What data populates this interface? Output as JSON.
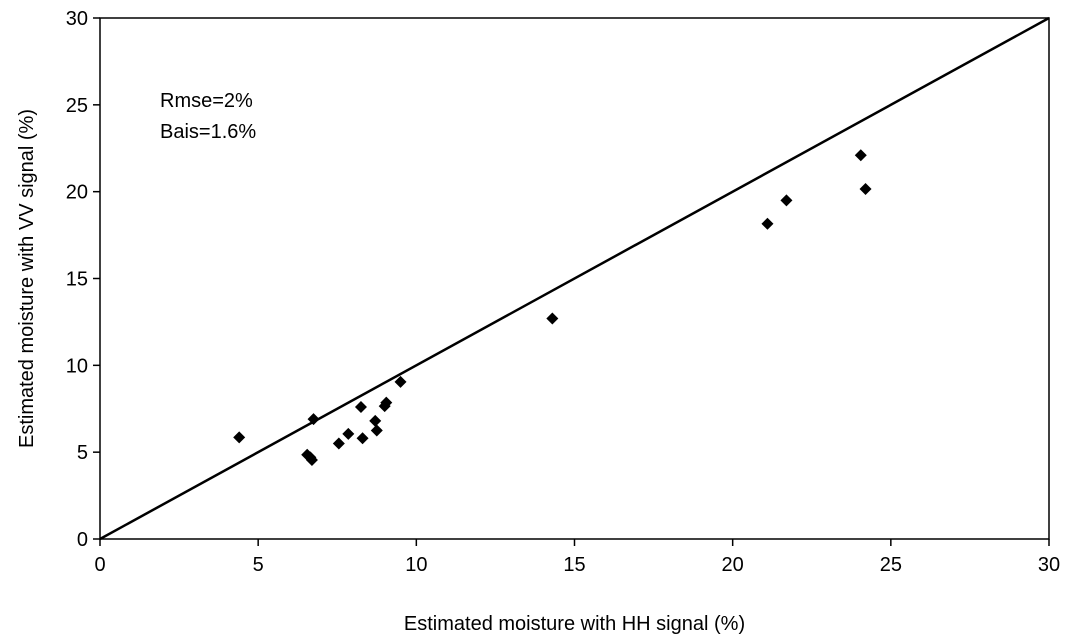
{
  "chart_data": {
    "type": "scatter",
    "title": "",
    "xlabel": "Estimated moisture with HH signal (%)",
    "ylabel": "Estimated moisture with VV signal (%)",
    "xlim": [
      0,
      30
    ],
    "ylim": [
      0,
      30
    ],
    "xticks": [
      0,
      5,
      10,
      15,
      20,
      25,
      30
    ],
    "yticks": [
      0,
      5,
      10,
      15,
      20,
      25,
      30
    ],
    "grid": false,
    "reference_line": {
      "from": [
        0,
        0
      ],
      "to": [
        30,
        30
      ]
    },
    "annotations": [
      "Rmse=2%",
      "Bais=1.6%"
    ],
    "marker_color": "#000000",
    "points": [
      [
        4.4,
        5.85
      ],
      [
        6.55,
        4.85
      ],
      [
        6.65,
        4.7
      ],
      [
        6.7,
        4.55
      ],
      [
        6.75,
        6.9
      ],
      [
        7.55,
        5.5
      ],
      [
        7.85,
        6.05
      ],
      [
        8.25,
        7.6
      ],
      [
        8.3,
        5.8
      ],
      [
        8.7,
        6.8
      ],
      [
        8.75,
        6.25
      ],
      [
        9.0,
        7.65
      ],
      [
        9.05,
        7.85
      ],
      [
        9.5,
        9.05
      ],
      [
        14.3,
        12.7
      ],
      [
        21.1,
        18.15
      ],
      [
        21.7,
        19.5
      ],
      [
        24.05,
        22.1
      ],
      [
        24.2,
        20.15
      ]
    ]
  }
}
